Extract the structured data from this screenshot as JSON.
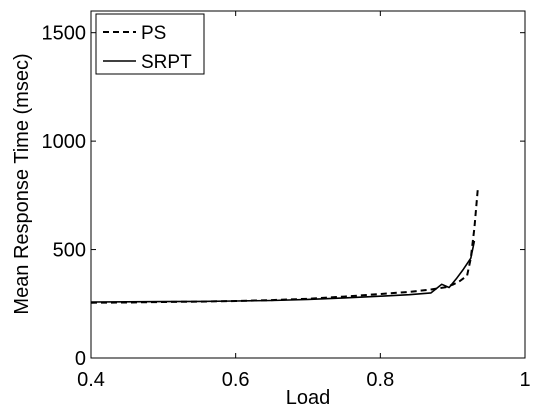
{
  "chart_data": {
    "type": "line",
    "xlabel": "Load",
    "ylabel": "Mean Response Time (msec)",
    "xlim": [
      0.4,
      1.0
    ],
    "ylim": [
      0,
      1600
    ],
    "xticks": [
      0.4,
      0.6,
      0.8,
      1.0
    ],
    "xtick_labels": [
      "0.4",
      "0.6",
      "0.8",
      "1"
    ],
    "yticks": [
      0,
      500,
      1000,
      1500
    ],
    "ytick_labels": [
      "0",
      "500",
      "1000",
      "1500"
    ],
    "grid": false,
    "legend_position": "top-left",
    "series": [
      {
        "name": "PS",
        "style": "dashed",
        "color": "#000000",
        "x": [
          0.4,
          0.45,
          0.5,
          0.55,
          0.6,
          0.65,
          0.7,
          0.75,
          0.8,
          0.84,
          0.87,
          0.89,
          0.9,
          0.91,
          0.92,
          0.925,
          0.93,
          0.935
        ],
        "y": [
          255,
          256,
          258,
          260,
          263,
          267,
          273,
          283,
          295,
          305,
          316,
          326,
          338,
          355,
          380,
          460,
          600,
          790
        ]
      },
      {
        "name": "SRPT",
        "style": "solid",
        "color": "#000000",
        "x": [
          0.4,
          0.45,
          0.5,
          0.55,
          0.6,
          0.65,
          0.7,
          0.75,
          0.8,
          0.84,
          0.87,
          0.885,
          0.895,
          0.905,
          0.915,
          0.925,
          0.93
        ],
        "y": [
          258,
          259,
          260,
          261,
          263,
          265,
          270,
          277,
          285,
          292,
          300,
          340,
          325,
          365,
          410,
          460,
          540
        ]
      }
    ]
  }
}
